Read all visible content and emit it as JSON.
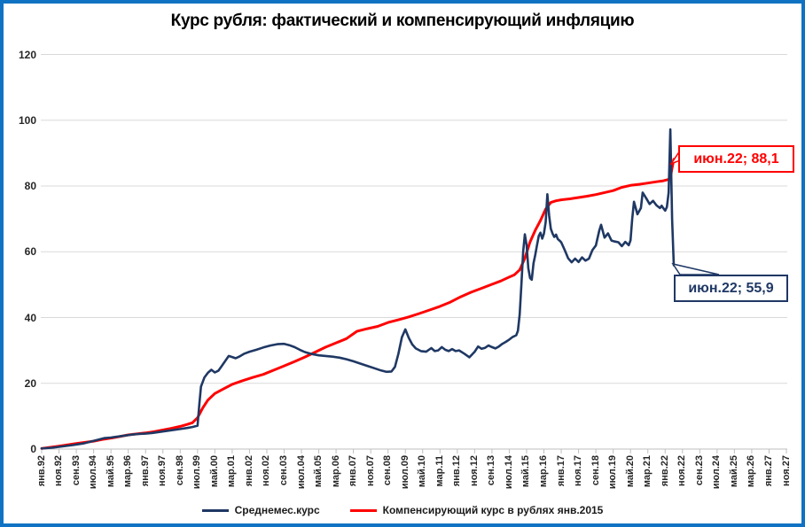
{
  "header": {
    "title": "Курс рубля: фактический и компенсирующий инфляцию"
  },
  "colors": {
    "frame_border": "#1072C2",
    "actual_line": "#1F3864",
    "compensating_line": "#FF0000",
    "gridline": "#D9D9D9",
    "axis_line": "#BFBFBF",
    "label_text": "#262626"
  },
  "legend": {
    "items": [
      {
        "label": "Среднемес.курс",
        "color": "#1F3864"
      },
      {
        "label": "Компенсирующий курс в рублях янв.2015",
        "color": "#FF0000"
      }
    ]
  },
  "callouts": {
    "red": {
      "label": "июн.22; 88,1",
      "date": "июн.22",
      "value": 88.1
    },
    "blue": {
      "label": "июн.22; 55,9",
      "date": "июн.22",
      "value": 55.9
    }
  },
  "chart_data": {
    "type": "line",
    "title": "Курс рубля: фактический и компенсирующий инфляцию",
    "xlabel": "",
    "ylabel": "",
    "grid": true,
    "legend_position": "bottom",
    "y_axis": {
      "ticks": [
        0,
        20,
        40,
        60,
        80,
        100,
        120
      ],
      "range": [
        0,
        120
      ]
    },
    "x_axis": {
      "unit": "months since янв.92",
      "range_months": [
        0,
        430
      ],
      "label_step_months": 10,
      "labels": [
        "янв.92",
        "ноя.92",
        "сен.93",
        "июл.94",
        "май.95",
        "мар.96",
        "янв.97",
        "ноя.97",
        "сен.98",
        "июл.99",
        "май.00",
        "мар.01",
        "янв.02",
        "ноя.02",
        "сен.03",
        "июл.04",
        "май.05",
        "мар.06",
        "янв.07",
        "ноя.07",
        "сен.08",
        "июл.09",
        "май.10",
        "мар.11",
        "янв.12",
        "ноя.12",
        "сен.13",
        "июл.14",
        "май.15",
        "мар.16",
        "янв.17",
        "ноя.17",
        "сен.18",
        "июл.19",
        "май.20",
        "мар.21",
        "янв.22",
        "ноя.22",
        "сен.23",
        "июл.24",
        "май.25",
        "мар.26",
        "янв.27",
        "ноя.27"
      ]
    },
    "series": [
      {
        "name": "Среднемес.курс",
        "color": "#1F3864",
        "points": [
          [
            0,
            0.2
          ],
          [
            6,
            0.4
          ],
          [
            12,
            0.8
          ],
          [
            18,
            1.2
          ],
          [
            24,
            1.7
          ],
          [
            30,
            2.5
          ],
          [
            33,
            2.9
          ],
          [
            36,
            3.3
          ],
          [
            40,
            3.5
          ],
          [
            44,
            3.8
          ],
          [
            48,
            4.1
          ],
          [
            52,
            4.4
          ],
          [
            56,
            4.6
          ],
          [
            60,
            4.7
          ],
          [
            64,
            4.9
          ],
          [
            68,
            5.2
          ],
          [
            72,
            5.5
          ],
          [
            76,
            5.8
          ],
          [
            80,
            6.1
          ],
          [
            84,
            6.4
          ],
          [
            87,
            6.7
          ],
          [
            90,
            7.1
          ],
          [
            91,
            13.5
          ],
          [
            92,
            19.0
          ],
          [
            94,
            21.8
          ],
          [
            96,
            23.2
          ],
          [
            98,
            24.1
          ],
          [
            100,
            23.3
          ],
          [
            102,
            23.8
          ],
          [
            104,
            25.3
          ],
          [
            106,
            26.8
          ],
          [
            108,
            28.3
          ],
          [
            110,
            28.0
          ],
          [
            112,
            27.6
          ],
          [
            114,
            28.1
          ],
          [
            117,
            29.0
          ],
          [
            120,
            29.6
          ],
          [
            124,
            30.2
          ],
          [
            128,
            30.9
          ],
          [
            132,
            31.5
          ],
          [
            136,
            31.9
          ],
          [
            140,
            32.0
          ],
          [
            143,
            31.6
          ],
          [
            146,
            31.0
          ],
          [
            149,
            30.2
          ],
          [
            152,
            29.5
          ],
          [
            156,
            28.9
          ],
          [
            160,
            28.5
          ],
          [
            164,
            28.3
          ],
          [
            168,
            28.1
          ],
          [
            172,
            27.8
          ],
          [
            176,
            27.3
          ],
          [
            180,
            26.7
          ],
          [
            184,
            26.0
          ],
          [
            188,
            25.3
          ],
          [
            192,
            24.6
          ],
          [
            196,
            23.9
          ],
          [
            199,
            23.5
          ],
          [
            202,
            23.6
          ],
          [
            204,
            25.0
          ],
          [
            206,
            29.0
          ],
          [
            208,
            34.0
          ],
          [
            210,
            36.4
          ],
          [
            212,
            33.8
          ],
          [
            214,
            31.8
          ],
          [
            216,
            30.6
          ],
          [
            219,
            29.8
          ],
          [
            222,
            29.6
          ],
          [
            225,
            30.7
          ],
          [
            227,
            29.8
          ],
          [
            229,
            30.0
          ],
          [
            231,
            31.0
          ],
          [
            233,
            30.2
          ],
          [
            235,
            29.8
          ],
          [
            237,
            30.4
          ],
          [
            239,
            29.8
          ],
          [
            241,
            30.0
          ],
          [
            244,
            29.0
          ],
          [
            247,
            27.9
          ],
          [
            250,
            29.6
          ],
          [
            252,
            31.2
          ],
          [
            254,
            30.5
          ],
          [
            256,
            30.8
          ],
          [
            258,
            31.5
          ],
          [
            260,
            31.0
          ],
          [
            262,
            30.6
          ],
          [
            264,
            31.2
          ],
          [
            266,
            32.0
          ],
          [
            268,
            32.6
          ],
          [
            270,
            33.3
          ],
          [
            272,
            34.1
          ],
          [
            274,
            34.6
          ],
          [
            275,
            36.0
          ],
          [
            276,
            41.0
          ],
          [
            277,
            50.0
          ],
          [
            278,
            60.0
          ],
          [
            279,
            65.3
          ],
          [
            280,
            62.0
          ],
          [
            281,
            55.0
          ],
          [
            282,
            52.0
          ],
          [
            283,
            51.5
          ],
          [
            284,
            56.5
          ],
          [
            285,
            59.0
          ],
          [
            286,
            62.0
          ],
          [
            287,
            64.8
          ],
          [
            288,
            65.8
          ],
          [
            289,
            64.0
          ],
          [
            290,
            65.5
          ],
          [
            291,
            69.0
          ],
          [
            292,
            77.5
          ],
          [
            293,
            71.0
          ],
          [
            294,
            67.0
          ],
          [
            295,
            65.5
          ],
          [
            296,
            64.5
          ],
          [
            297,
            65.2
          ],
          [
            298,
            63.9
          ],
          [
            299,
            63.4
          ],
          [
            300,
            62.9
          ],
          [
            302,
            60.5
          ],
          [
            304,
            58.0
          ],
          [
            306,
            56.8
          ],
          [
            308,
            57.9
          ],
          [
            310,
            56.9
          ],
          [
            312,
            58.3
          ],
          [
            314,
            57.3
          ],
          [
            316,
            57.9
          ],
          [
            318,
            60.5
          ],
          [
            320,
            61.9
          ],
          [
            322,
            66.5
          ],
          [
            323,
            68.2
          ],
          [
            325,
            64.3
          ],
          [
            327,
            65.6
          ],
          [
            329,
            63.4
          ],
          [
            331,
            63.1
          ],
          [
            333,
            62.9
          ],
          [
            335,
            61.7
          ],
          [
            337,
            63.0
          ],
          [
            339,
            62.0
          ],
          [
            340,
            63.5
          ],
          [
            341,
            70.0
          ],
          [
            342,
            75.2
          ],
          [
            344,
            71.4
          ],
          [
            346,
            73.3
          ],
          [
            347,
            78.0
          ],
          [
            349,
            76.3
          ],
          [
            351,
            74.5
          ],
          [
            353,
            75.5
          ],
          [
            355,
            74.1
          ],
          [
            357,
            73.3
          ],
          [
            358,
            74.0
          ],
          [
            359,
            73.2
          ],
          [
            360,
            72.5
          ],
          [
            361,
            73.6
          ],
          [
            362,
            78.0
          ],
          [
            363,
            97.2
          ],
          [
            364,
            70.0
          ],
          [
            365,
            55.9
          ]
        ]
      },
      {
        "name": "Компенсирующий курс в рублях янв.2015",
        "color": "#FF0000",
        "points": [
          [
            0,
            0.2
          ],
          [
            10,
            0.9
          ],
          [
            20,
            1.7
          ],
          [
            30,
            2.4
          ],
          [
            35,
            2.9
          ],
          [
            40,
            3.3
          ],
          [
            45,
            3.8
          ],
          [
            50,
            4.3
          ],
          [
            55,
            4.6
          ],
          [
            60,
            4.9
          ],
          [
            65,
            5.3
          ],
          [
            70,
            5.8
          ],
          [
            75,
            6.3
          ],
          [
            80,
            6.9
          ],
          [
            84,
            7.5
          ],
          [
            87,
            8.0
          ],
          [
            90,
            9.5
          ],
          [
            93,
            12.5
          ],
          [
            96,
            14.9
          ],
          [
            100,
            16.9
          ],
          [
            105,
            18.3
          ],
          [
            110,
            19.7
          ],
          [
            116,
            20.8
          ],
          [
            122,
            21.8
          ],
          [
            128,
            22.7
          ],
          [
            134,
            24.0
          ],
          [
            140,
            25.3
          ],
          [
            146,
            26.6
          ],
          [
            152,
            28.0
          ],
          [
            158,
            29.5
          ],
          [
            164,
            31.0
          ],
          [
            170,
            32.3
          ],
          [
            176,
            33.6
          ],
          [
            182,
            35.8
          ],
          [
            188,
            36.6
          ],
          [
            194,
            37.3
          ],
          [
            200,
            38.5
          ],
          [
            206,
            39.3
          ],
          [
            212,
            40.2
          ],
          [
            218,
            41.2
          ],
          [
            224,
            42.3
          ],
          [
            230,
            43.4
          ],
          [
            236,
            44.7
          ],
          [
            242,
            46.3
          ],
          [
            248,
            47.7
          ],
          [
            254,
            48.9
          ],
          [
            260,
            50.1
          ],
          [
            265,
            51.1
          ],
          [
            270,
            52.3
          ],
          [
            273,
            53.0
          ],
          [
            276,
            54.5
          ],
          [
            279,
            58.0
          ],
          [
            282,
            63.0
          ],
          [
            285,
            66.5
          ],
          [
            288,
            69.5
          ],
          [
            291,
            73.0
          ],
          [
            294,
            75.0
          ],
          [
            297,
            75.5
          ],
          [
            300,
            75.8
          ],
          [
            305,
            76.1
          ],
          [
            310,
            76.5
          ],
          [
            315,
            76.9
          ],
          [
            320,
            77.4
          ],
          [
            325,
            78.0
          ],
          [
            330,
            78.6
          ],
          [
            335,
            79.6
          ],
          [
            340,
            80.2
          ],
          [
            345,
            80.5
          ],
          [
            350,
            80.9
          ],
          [
            355,
            81.3
          ],
          [
            359,
            81.6
          ],
          [
            362,
            82.0
          ],
          [
            363,
            82.5
          ],
          [
            364,
            85.5
          ],
          [
            365,
            88.1
          ]
        ]
      }
    ],
    "annotations": [
      {
        "target_series": "Компенсирующий курс в рублях янв.2015",
        "label": "июн.22; 88,1"
      },
      {
        "target_series": "Среднемес.курс",
        "label": "июн.22; 55,9"
      }
    ]
  }
}
